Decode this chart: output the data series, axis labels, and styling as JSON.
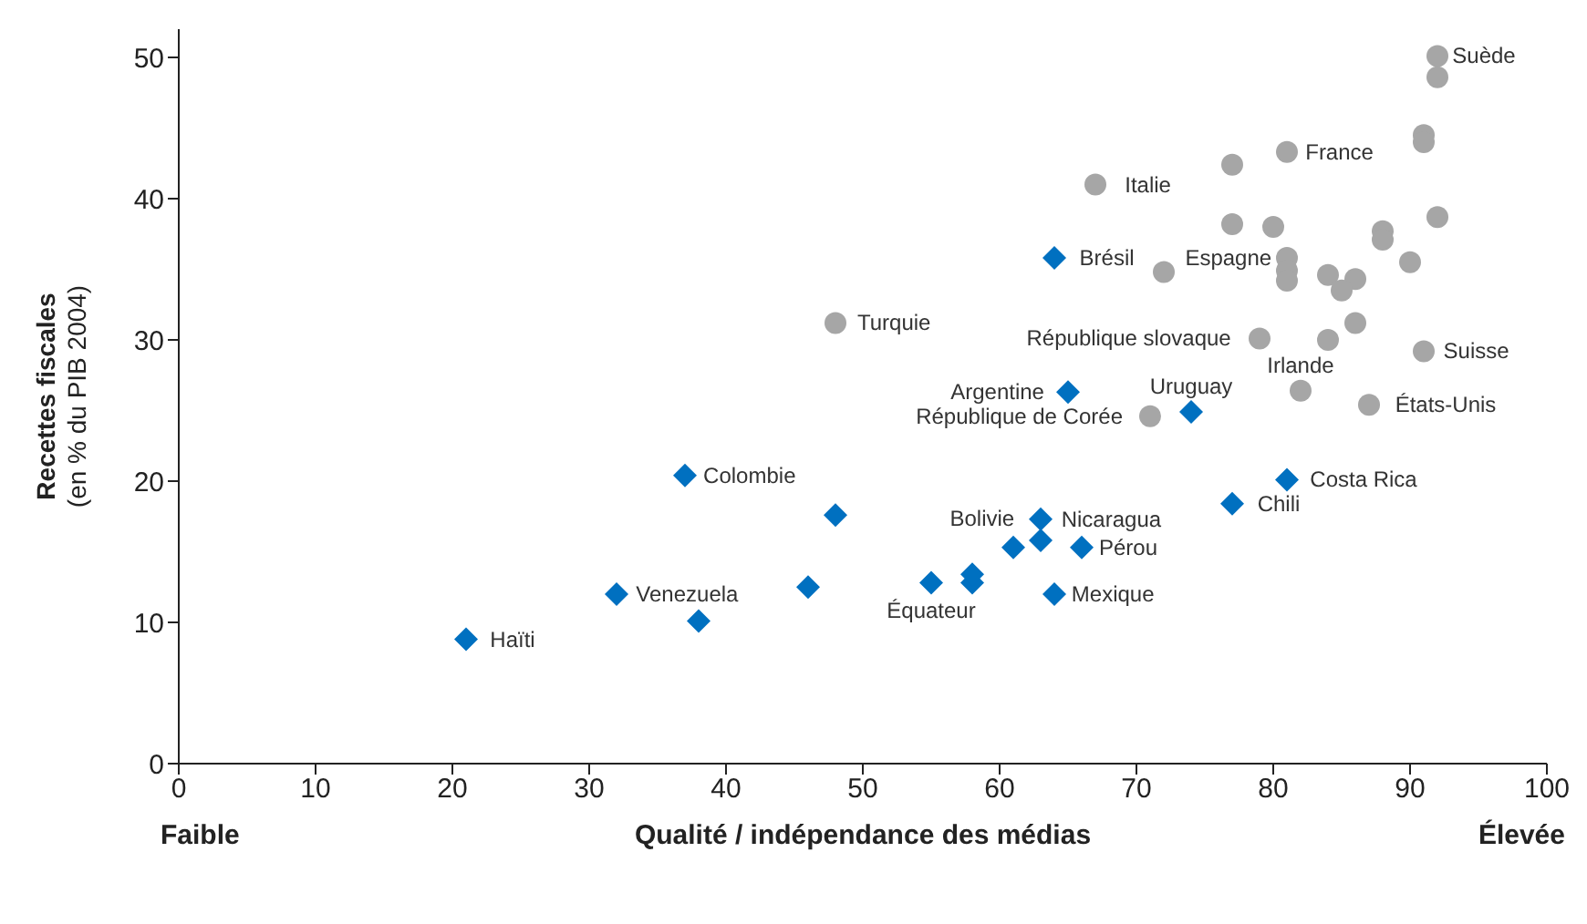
{
  "chart_data": {
    "type": "scatter",
    "ylabel": "Recettes fiscales\n(en % du PIB 2004)",
    "xlabel": "Qualité / indépendance des médias",
    "xlim": [
      0,
      100
    ],
    "xticks": [
      0,
      10,
      20,
      30,
      40,
      50,
      60,
      70,
      80,
      90,
      100
    ],
    "ylim": [
      0,
      52
    ],
    "yticks": [
      0,
      10,
      20,
      30,
      40,
      50
    ],
    "series": [
      {
        "color": "#a6a6a6",
        "marker": "circle",
        "x": [
          92,
          92,
          91,
          91,
          81,
          77,
          67,
          77,
          80,
          88,
          88,
          92,
          81,
          72,
          81,
          81,
          84,
          86,
          85,
          90,
          48,
          79,
          84,
          86,
          91,
          82,
          87,
          71
        ],
        "values": [
          50.1,
          48.6,
          44.5,
          44.0,
          43.3,
          42.4,
          41.0,
          38.2,
          38.0,
          37.7,
          37.1,
          38.7,
          35.8,
          34.8,
          34.9,
          34.2,
          34.6,
          34.3,
          33.5,
          35.5,
          31.2,
          30.1,
          30.0,
          31.2,
          29.2,
          26.4,
          25.4,
          24.6
        ]
      },
      {
        "color": "#0070c0",
        "marker": "diamond",
        "x": [
          64,
          65,
          74,
          37,
          81,
          77,
          48,
          63,
          61,
          63,
          66,
          58,
          58,
          55,
          46,
          64,
          32,
          38,
          21
        ],
        "values": [
          35.8,
          26.3,
          24.9,
          20.4,
          20.1,
          18.4,
          17.6,
          17.3,
          15.3,
          15.8,
          15.3,
          12.8,
          13.4,
          12.8,
          12.5,
          12.0,
          12.0,
          10.1,
          8.8
        ]
      }
    ],
    "annotations": [
      {
        "text": "Suède",
        "x": 92,
        "y": 50.1
      },
      {
        "text": "France",
        "x": 81,
        "y": 43.3
      },
      {
        "text": "Italie",
        "x": 67,
        "y": 41.0
      },
      {
        "text": "Brésil",
        "x": 64,
        "y": 35.8
      },
      {
        "text": "Espagne",
        "x": 81,
        "y": 35.8
      },
      {
        "text": "Turquie",
        "x": 48,
        "y": 31.2
      },
      {
        "text": "République slovaque",
        "x": 79,
        "y": 30.1
      },
      {
        "text": "Suisse",
        "x": 91,
        "y": 29.2
      },
      {
        "text": "Irlande",
        "x": 82,
        "y": 26.4
      },
      {
        "text": "Argentine",
        "x": 65,
        "y": 26.3
      },
      {
        "text": "Uruguay",
        "x": 74,
        "y": 24.9
      },
      {
        "text": "États-Unis",
        "x": 87,
        "y": 25.4
      },
      {
        "text": "République de Corée",
        "x": 71,
        "y": 24.6
      },
      {
        "text": "Colombie",
        "x": 37,
        "y": 20.4
      },
      {
        "text": "Costa Rica",
        "x": 81,
        "y": 20.1
      },
      {
        "text": "Chili",
        "x": 77,
        "y": 18.4
      },
      {
        "text": "Nicaragua",
        "x": 63,
        "y": 17.3
      },
      {
        "text": "Pérou",
        "x": 66,
        "y": 15.3
      },
      {
        "text": "Équateur",
        "x": 55,
        "y": 12.8
      },
      {
        "text": "Bolivie",
        "x": 63,
        "y": 15.8
      },
      {
        "text": "Venezuela",
        "x": 32,
        "y": 12.0
      },
      {
        "text": "Mexique",
        "x": 64,
        "y": 12.0
      },
      {
        "text": "Haïti",
        "x": 21,
        "y": 8.8
      },
      "Faible",
      "Élevée"
    ]
  }
}
